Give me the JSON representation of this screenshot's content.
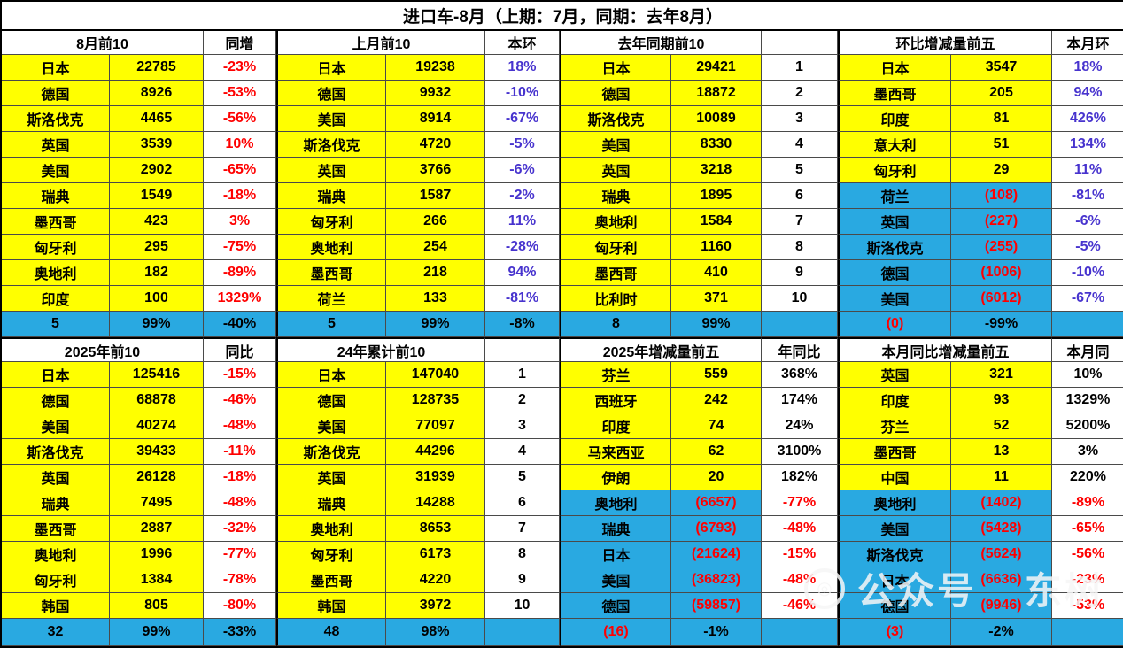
{
  "chart_data": {
    "type": "table",
    "title": "进口车-8月（上期：7月，同期：去年8月）",
    "colors": {
      "yellow": "#FFFF00",
      "blue_bg": "#29A9E1",
      "red": "#FE0000",
      "purple": "#4733CE",
      "black": "#000000"
    },
    "halves": [
      {
        "groups": [
          {
            "title": "8月前10",
            "col3": "同增",
            "pos": "red",
            "neg": "red",
            "rows": [
              [
                "日本",
                "22785",
                "-23%"
              ],
              [
                "德国",
                "8926",
                "-53%"
              ],
              [
                "斯洛伐克",
                "4465",
                "-56%"
              ],
              [
                "英国",
                "3539",
                "10%"
              ],
              [
                "美国",
                "2902",
                "-65%"
              ],
              [
                "瑞典",
                "1549",
                "-18%"
              ],
              [
                "墨西哥",
                "423",
                "3%"
              ],
              [
                "匈牙利",
                "295",
                "-75%"
              ],
              [
                "奥地利",
                "182",
                "-89%"
              ],
              [
                "印度",
                "100",
                "1329%"
              ]
            ],
            "footer": [
              "5",
              "99%",
              "-40%"
            ]
          },
          {
            "title": "上月前10",
            "col3": "本环",
            "pos": "purple",
            "neg": "purple",
            "rows": [
              [
                "日本",
                "19238",
                "18%"
              ],
              [
                "德国",
                "9932",
                "-10%"
              ],
              [
                "美国",
                "8914",
                "-67%"
              ],
              [
                "斯洛伐克",
                "4720",
                "-5%"
              ],
              [
                "英国",
                "3766",
                "-6%"
              ],
              [
                "瑞典",
                "1587",
                "-2%"
              ],
              [
                "匈牙利",
                "266",
                "11%"
              ],
              [
                "奥地利",
                "254",
                "-28%"
              ],
              [
                "墨西哥",
                "218",
                "94%"
              ],
              [
                "荷兰",
                "133",
                "-81%"
              ]
            ],
            "footer": [
              "5",
              "99%",
              "-8%"
            ]
          },
          {
            "title": "去年同期前10",
            "col3": "",
            "pos": "black",
            "neg": "black",
            "rows": [
              [
                "日本",
                "29421",
                "1"
              ],
              [
                "德国",
                "18872",
                "2"
              ],
              [
                "斯洛伐克",
                "10089",
                "3"
              ],
              [
                "美国",
                "8330",
                "4"
              ],
              [
                "英国",
                "3218",
                "5"
              ],
              [
                "瑞典",
                "1895",
                "6"
              ],
              [
                "奥地利",
                "1584",
                "7"
              ],
              [
                "匈牙利",
                "1160",
                "8"
              ],
              [
                "墨西哥",
                "410",
                "9"
              ],
              [
                "比利时",
                "371",
                "10"
              ]
            ],
            "footer": [
              "8",
              "99%",
              ""
            ]
          },
          {
            "title": "环比增减量前五",
            "col3": "本月环",
            "pos": "purple",
            "neg": "purple",
            "rows": [
              [
                "日本",
                "3547",
                "18%"
              ],
              [
                "墨西哥",
                "205",
                "94%"
              ],
              [
                "印度",
                "81",
                "426%"
              ],
              [
                "意大利",
                "51",
                "134%"
              ],
              [
                "匈牙利",
                "29",
                "11%"
              ],
              [
                "荷兰",
                "(108)",
                "-81%"
              ],
              [
                "英国",
                "(227)",
                "-6%"
              ],
              [
                "斯洛伐克",
                "(255)",
                "-5%"
              ],
              [
                "德国",
                "(1006)",
                "-10%"
              ],
              [
                "美国",
                "(6012)",
                "-67%"
              ]
            ],
            "footer": [
              "(0)",
              "-99%",
              ""
            ]
          }
        ]
      },
      {
        "groups": [
          {
            "title": "2025年前10",
            "col3": "同比",
            "pos": "red",
            "neg": "red",
            "rows": [
              [
                "日本",
                "125416",
                "-15%"
              ],
              [
                "德国",
                "68878",
                "-46%"
              ],
              [
                "美国",
                "40274",
                "-48%"
              ],
              [
                "斯洛伐克",
                "39433",
                "-11%"
              ],
              [
                "英国",
                "26128",
                "-18%"
              ],
              [
                "瑞典",
                "7495",
                "-48%"
              ],
              [
                "墨西哥",
                "2887",
                "-32%"
              ],
              [
                "奥地利",
                "1996",
                "-77%"
              ],
              [
                "匈牙利",
                "1384",
                "-78%"
              ],
              [
                "韩国",
                "805",
                "-80%"
              ]
            ],
            "footer": [
              "32",
              "99%",
              "-33%"
            ]
          },
          {
            "title": "24年累计前10",
            "col3": "",
            "pos": "black",
            "neg": "black",
            "rows": [
              [
                "日本",
                "147040",
                "1"
              ],
              [
                "德国",
                "128735",
                "2"
              ],
              [
                "美国",
                "77097",
                "3"
              ],
              [
                "斯洛伐克",
                "44296",
                "4"
              ],
              [
                "英国",
                "31939",
                "5"
              ],
              [
                "瑞典",
                "14288",
                "6"
              ],
              [
                "奥地利",
                "8653",
                "7"
              ],
              [
                "匈牙利",
                "6173",
                "8"
              ],
              [
                "墨西哥",
                "4220",
                "9"
              ],
              [
                "韩国",
                "3972",
                "10"
              ]
            ],
            "footer": [
              "48",
              "98%",
              ""
            ]
          },
          {
            "title": "2025年增减量前五",
            "col3": "年同比",
            "pos": "black",
            "neg": "red",
            "rows": [
              [
                "芬兰",
                "559",
                "368%"
              ],
              [
                "西班牙",
                "242",
                "174%"
              ],
              [
                "印度",
                "74",
                "24%"
              ],
              [
                "马来西亚",
                "62",
                "3100%"
              ],
              [
                "伊朗",
                "20",
                "182%"
              ],
              [
                "奥地利",
                "(6657)",
                "-77%"
              ],
              [
                "瑞典",
                "(6793)",
                "-48%"
              ],
              [
                "日本",
                "(21624)",
                "-15%"
              ],
              [
                "美国",
                "(36823)",
                "-48%"
              ],
              [
                "德国",
                "(59857)",
                "-46%"
              ]
            ],
            "footer": [
              "(16)",
              "-1%",
              ""
            ]
          },
          {
            "title": "本月同比增减量前五",
            "col3": "本月同",
            "pos": "black",
            "neg": "red",
            "rows": [
              [
                "英国",
                "321",
                "10%"
              ],
              [
                "印度",
                "93",
                "1329%"
              ],
              [
                "芬兰",
                "52",
                "5200%"
              ],
              [
                "墨西哥",
                "13",
                "3%"
              ],
              [
                "中国",
                "11",
                "220%"
              ],
              [
                "奥地利",
                "(1402)",
                "-89%"
              ],
              [
                "美国",
                "(5428)",
                "-65%"
              ],
              [
                "斯洛伐克",
                "(5624)",
                "-56%"
              ],
              [
                "日本",
                "(6636)",
                "-23%"
              ],
              [
                "德国",
                "(9946)",
                "-53%"
              ]
            ],
            "footer": [
              "(3)",
              "-2%",
              ""
            ]
          }
        ]
      }
    ]
  },
  "watermark": {
    "text1": "公众号",
    "text2": "东树"
  }
}
